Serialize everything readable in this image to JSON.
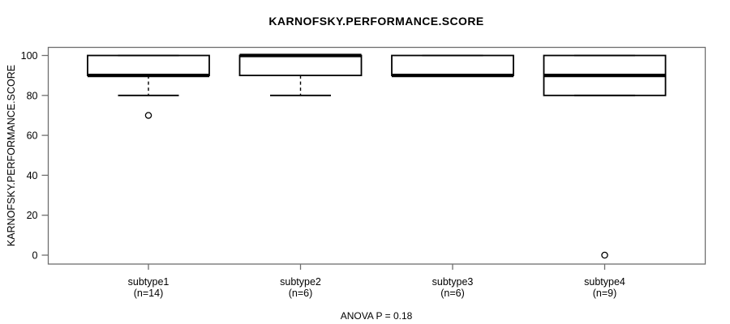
{
  "figure": {
    "title": "KARNOFSKY.PERFORMANCE.SCORE",
    "y_axis_title": "KARNOFSKY.PERFORMANCE.SCORE",
    "footer": "ANOVA P = 0.18"
  },
  "colors": {
    "background": "#ffffff",
    "frame": "#6e6e6e",
    "box_stroke": "#000000",
    "median": "#000000",
    "text": "#000000"
  },
  "chart_data": {
    "type": "boxplot",
    "title": "KARNOFSKY.PERFORMANCE.SCORE",
    "xlabel": "",
    "ylabel": "KARNOFSKY.PERFORMANCE.SCORE",
    "annotation": "ANOVA P = 0.18",
    "ylim": [
      -4,
      104
    ],
    "yticks": [
      0,
      20,
      40,
      60,
      80,
      100
    ],
    "grid": false,
    "legend": "none",
    "groups": [
      {
        "label": "subtype1",
        "sublabel": "(n=14)",
        "n": 14,
        "whisker_low": 80,
        "q1": 90,
        "median": 90,
        "q3": 100,
        "whisker_high": 100,
        "outliers": [
          70
        ]
      },
      {
        "label": "subtype2",
        "sublabel": "(n=6)",
        "n": 6,
        "whisker_low": 80,
        "q1": 90,
        "median": 100,
        "q3": 100,
        "whisker_high": 100,
        "outliers": []
      },
      {
        "label": "subtype3",
        "sublabel": "(n=6)",
        "n": 6,
        "whisker_low": 90,
        "q1": 90,
        "median": 90,
        "q3": 100,
        "whisker_high": 100,
        "outliers": []
      },
      {
        "label": "subtype4",
        "sublabel": "(n=9)",
        "n": 9,
        "whisker_low": 80,
        "q1": 80,
        "median": 90,
        "q3": 100,
        "whisker_high": 100,
        "outliers": [
          0
        ]
      }
    ]
  }
}
